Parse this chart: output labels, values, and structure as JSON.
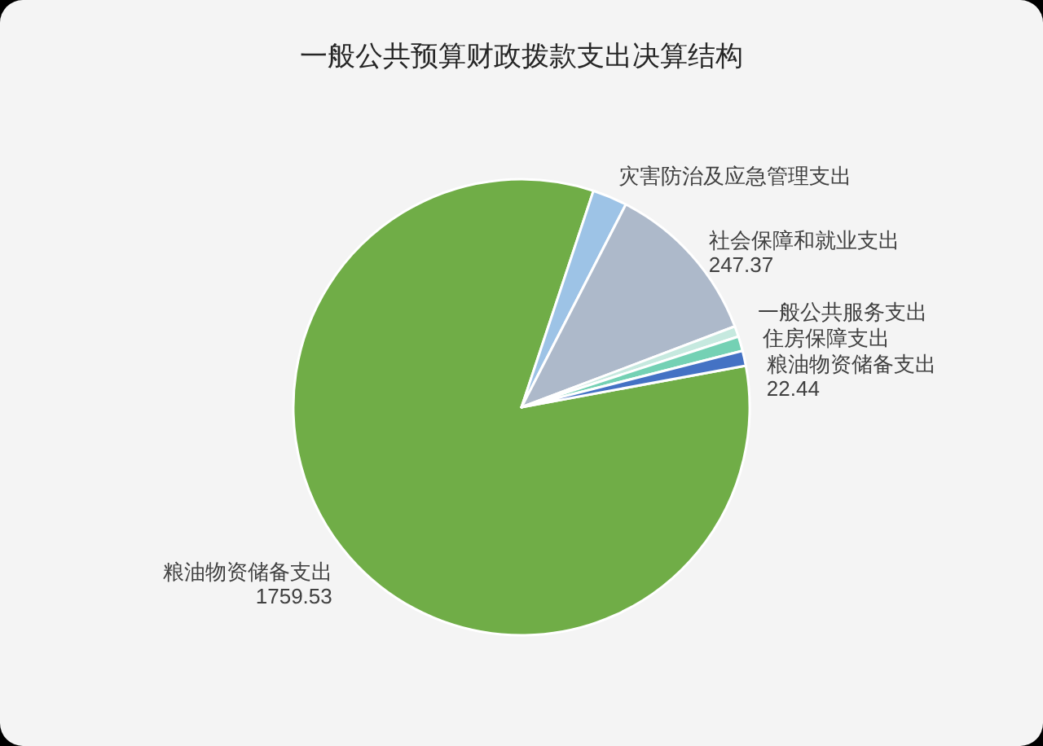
{
  "chart_data": {
    "type": "pie",
    "title": "一般公共预算财政拨款支出决算结构",
    "categories": [
      "粮油物资储备支出",
      "灾害防治及应急管理支出",
      "社会保障和就业支出",
      "一般公共服务支出",
      "住房保障支出",
      "粮油物资储备支出"
    ],
    "values": [
      1759.53,
      52,
      247.37,
      16,
      22,
      22.44
    ],
    "value_labels": [
      "1759.53",
      null,
      "247.37",
      null,
      null,
      "22.44"
    ],
    "colors": [
      "#70ad47",
      "#9dc3e6",
      "#adb9ca",
      "#c6e9df",
      "#74d1b4",
      "#4472c4"
    ]
  }
}
